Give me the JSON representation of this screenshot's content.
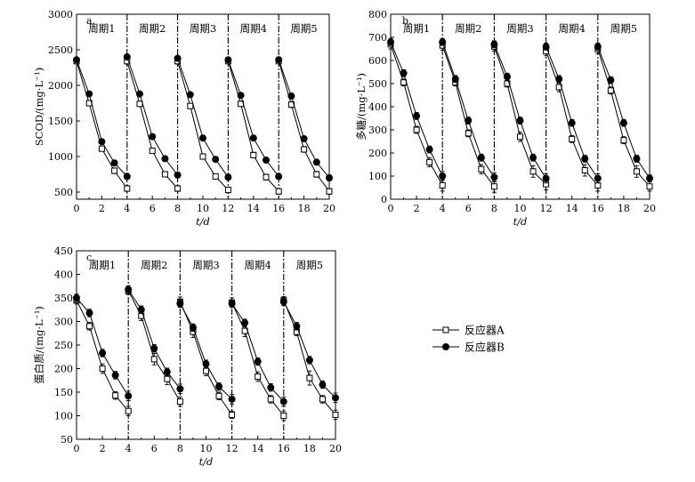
{
  "legend": {
    "series_a": "反应器A",
    "series_b": "反应器B"
  },
  "colors": {
    "line": "#000000",
    "open_marker_fill": "#ffffff",
    "filled_marker_fill": "#000000"
  },
  "chart_data": [
    {
      "type": "line",
      "panel": "a.",
      "xlabel": "t/d",
      "ylabel": "SCOD/(mg·L⁻¹)",
      "xlim": [
        0,
        20
      ],
      "ylim": [
        400,
        3000
      ],
      "xticks": [
        0,
        2,
        4,
        6,
        8,
        10,
        12,
        14,
        16,
        18,
        20
      ],
      "yticks": [
        500,
        1000,
        1500,
        2000,
        2500,
        3000
      ],
      "cycle_dividers": [
        4,
        8,
        12,
        16
      ],
      "cycle_labels": [
        "周期1",
        "周期2",
        "周期3",
        "周期4",
        "周期5"
      ],
      "x": [
        0,
        1,
        2,
        3,
        4,
        4,
        5,
        6,
        7,
        8,
        8,
        9,
        10,
        11,
        12,
        12,
        13,
        14,
        15,
        16,
        16,
        17,
        18,
        19,
        20
      ],
      "series": [
        {
          "name": "反应器A",
          "marker": "open-square",
          "values": [
            2340,
            1750,
            1110,
            800,
            550,
            2340,
            1740,
            1080,
            750,
            550,
            2340,
            1710,
            1000,
            720,
            530,
            2340,
            1740,
            1020,
            710,
            510,
            2340,
            1730,
            1100,
            750,
            510
          ],
          "err": [
            30,
            30,
            30,
            40,
            40,
            40,
            30,
            30,
            30,
            40,
            40,
            30,
            30,
            30,
            40,
            30,
            30,
            40,
            40,
            40,
            30,
            40,
            40,
            40,
            40
          ]
        },
        {
          "name": "反应器B",
          "marker": "filled-circle",
          "values": [
            2360,
            1880,
            1210,
            910,
            720,
            2400,
            1880,
            1280,
            970,
            740,
            2380,
            1870,
            1260,
            960,
            710,
            2360,
            1860,
            1260,
            950,
            720,
            2360,
            1850,
            1250,
            920,
            700
          ],
          "err": [
            30,
            30,
            30,
            30,
            40,
            30,
            30,
            30,
            30,
            40,
            30,
            30,
            30,
            30,
            40,
            30,
            30,
            30,
            30,
            40,
            30,
            30,
            30,
            30,
            40
          ]
        }
      ]
    },
    {
      "type": "line",
      "panel": "b.",
      "xlabel": "t/d",
      "ylabel": "多糖/(mg·L⁻¹)",
      "xlim": [
        0,
        20
      ],
      "ylim": [
        0,
        800
      ],
      "xticks": [
        0,
        2,
        4,
        6,
        8,
        10,
        12,
        14,
        16,
        18,
        20
      ],
      "yticks": [
        0,
        100,
        200,
        300,
        400,
        500,
        600,
        700,
        800
      ],
      "cycle_dividers": [
        4,
        8,
        12,
        16
      ],
      "cycle_labels": [
        "周期1",
        "周期2",
        "周期3",
        "周期4",
        "周期5"
      ],
      "x": [
        0,
        1,
        2,
        3,
        4,
        4,
        5,
        6,
        7,
        8,
        8,
        9,
        10,
        11,
        12,
        12,
        13,
        14,
        15,
        16,
        16,
        17,
        18,
        19,
        20
      ],
      "series": [
        {
          "name": "反应器A",
          "marker": "open-square",
          "values": [
            670,
            505,
            300,
            160,
            60,
            665,
            505,
            285,
            130,
            55,
            660,
            500,
            270,
            120,
            65,
            640,
            485,
            260,
            125,
            60,
            650,
            470,
            255,
            120,
            55
          ],
          "err": [
            20,
            15,
            15,
            20,
            25,
            20,
            15,
            15,
            20,
            25,
            20,
            15,
            20,
            25,
            25,
            20,
            20,
            15,
            25,
            25,
            20,
            15,
            15,
            25,
            20
          ]
        },
        {
          "name": "反应器B",
          "marker": "filled-circle",
          "values": [
            680,
            545,
            360,
            215,
            100,
            680,
            520,
            340,
            180,
            95,
            670,
            530,
            340,
            180,
            90,
            660,
            520,
            330,
            175,
            90,
            660,
            515,
            330,
            175,
            90
          ],
          "err": [
            15,
            15,
            15,
            15,
            20,
            15,
            15,
            15,
            15,
            20,
            15,
            15,
            15,
            15,
            20,
            15,
            15,
            15,
            15,
            20,
            15,
            15,
            15,
            15,
            15
          ]
        }
      ]
    },
    {
      "type": "line",
      "panel": "c.",
      "xlabel": "t/d",
      "ylabel": "蛋白质/(mg·L⁻¹)",
      "xlim": [
        0,
        20
      ],
      "ylim": [
        50,
        450
      ],
      "xticks": [
        0,
        2,
        4,
        6,
        8,
        10,
        12,
        14,
        16,
        18,
        20
      ],
      "yticks": [
        50,
        100,
        150,
        200,
        250,
        300,
        350,
        400,
        450
      ],
      "cycle_dividers": [
        4,
        8,
        12,
        16
      ],
      "cycle_labels": [
        "周期1",
        "周期2",
        "周期3",
        "周期4",
        "周期5"
      ],
      "x": [
        0,
        1,
        2,
        3,
        4,
        4,
        5,
        6,
        7,
        8,
        8,
        9,
        10,
        11,
        12,
        12,
        13,
        14,
        15,
        16,
        16,
        17,
        18,
        19,
        20
      ],
      "series": [
        {
          "name": "反应器A",
          "marker": "open-square",
          "values": [
            345,
            290,
            200,
            143,
            110,
            365,
            312,
            220,
            178,
            130,
            342,
            278,
            195,
            142,
            102,
            340,
            280,
            183,
            135,
            100,
            345,
            278,
            180,
            135,
            102
          ],
          "err": [
            8,
            8,
            10,
            8,
            10,
            8,
            10,
            12,
            12,
            10,
            10,
            12,
            10,
            8,
            8,
            10,
            12,
            10,
            8,
            10,
            8,
            8,
            15,
            8,
            10
          ]
        },
        {
          "name": "反应器B",
          "marker": "filled-circle",
          "values": [
            350,
            318,
            233,
            186,
            142,
            368,
            325,
            243,
            193,
            157,
            338,
            287,
            210,
            162,
            135,
            338,
            297,
            215,
            160,
            130,
            342,
            290,
            218,
            166,
            138
          ],
          "err": [
            8,
            8,
            8,
            8,
            10,
            8,
            8,
            8,
            8,
            10,
            8,
            8,
            8,
            8,
            10,
            8,
            8,
            8,
            8,
            10,
            8,
            8,
            8,
            8,
            10
          ]
        }
      ]
    }
  ]
}
